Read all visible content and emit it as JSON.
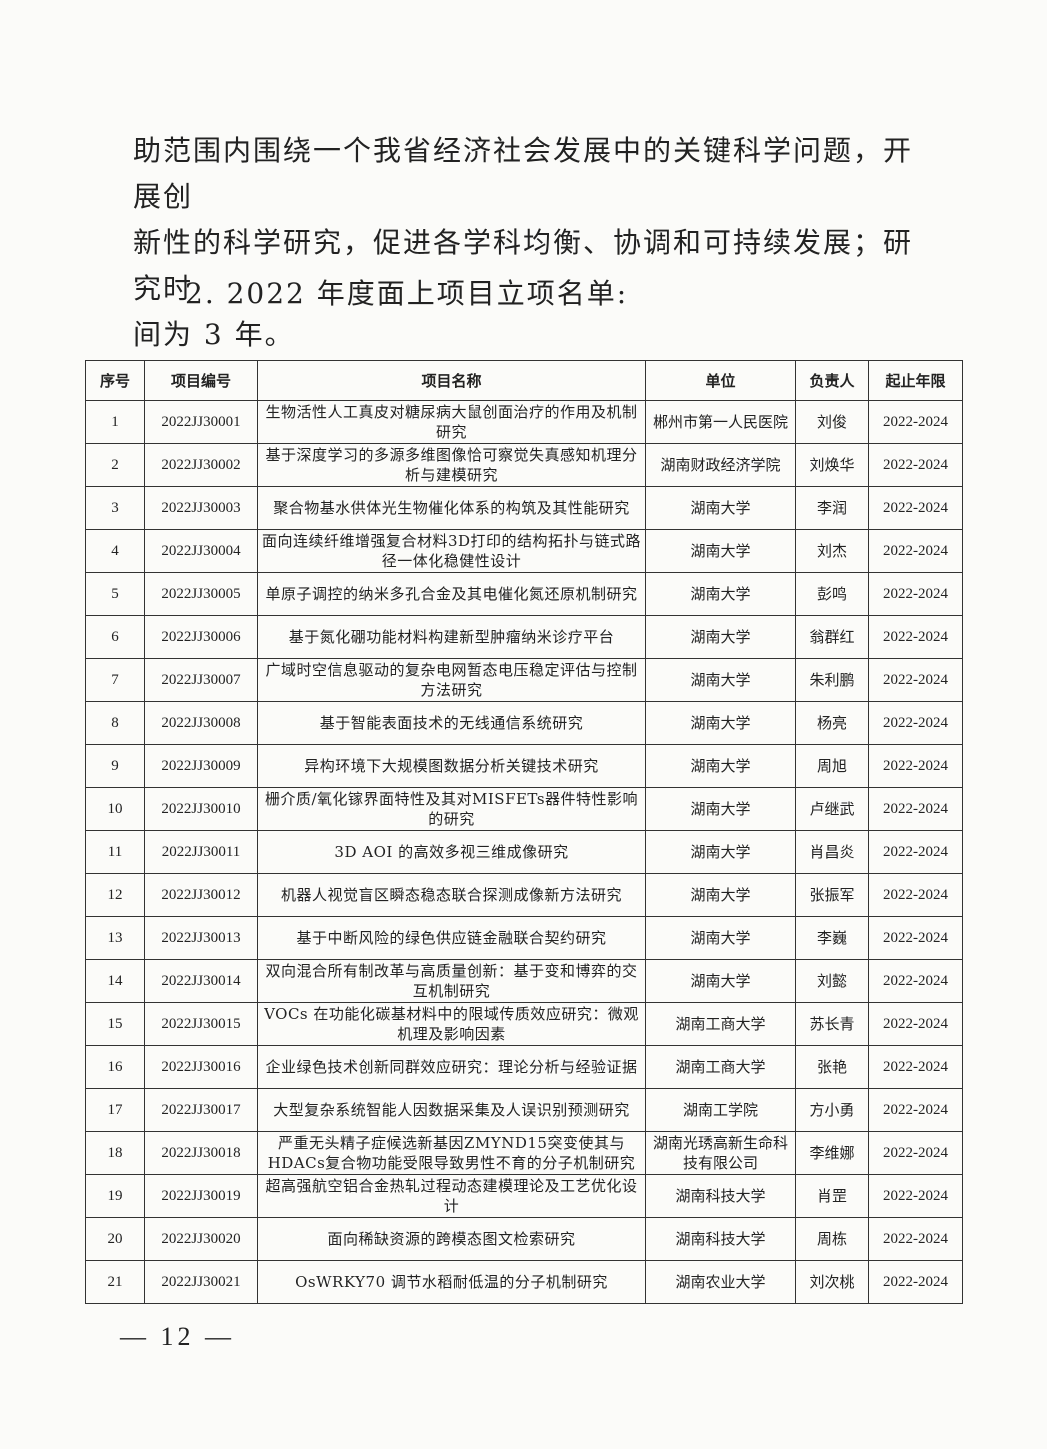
{
  "intro_lines": [
    "助范围内围绕一个我省经济社会发展中的关键科学问题，开展创",
    "新性的科学研究，促进各学科均衡、协调和可持续发展；研究时",
    "间为 3 年。"
  ],
  "section_title": "2. 2022 年度面上项目立项名单:",
  "table": {
    "headers": [
      "序号",
      "项目编号",
      "项目名称",
      "单位",
      "负责人",
      "起止年限"
    ],
    "rows": [
      [
        "1",
        "2022JJ30001",
        "生物活性人工真皮对糖尿病大鼠创面治疗的作用及机制研究",
        "郴州市第一人民医院",
        "刘俊",
        "2022-2024"
      ],
      [
        "2",
        "2022JJ30002",
        "基于深度学习的多源多维图像恰可察觉失真感知机理分析与建模研究",
        "湖南财政经济学院",
        "刘焕华",
        "2022-2024"
      ],
      [
        "3",
        "2022JJ30003",
        "聚合物基水供体光生物催化体系的构筑及其性能研究",
        "湖南大学",
        "李润",
        "2022-2024"
      ],
      [
        "4",
        "2022JJ30004",
        "面向连续纤维增强复合材料3D打印的结构拓扑与链式路径一体化稳健性设计",
        "湖南大学",
        "刘杰",
        "2022-2024"
      ],
      [
        "5",
        "2022JJ30005",
        "单原子调控的纳米多孔合金及其电催化氮还原机制研究",
        "湖南大学",
        "彭鸣",
        "2022-2024"
      ],
      [
        "6",
        "2022JJ30006",
        "基于氮化硼功能材料构建新型肿瘤纳米诊疗平台",
        "湖南大学",
        "翁群红",
        "2022-2024"
      ],
      [
        "7",
        "2022JJ30007",
        "广域时空信息驱动的复杂电网暂态电压稳定评估与控制方法研究",
        "湖南大学",
        "朱利鹏",
        "2022-2024"
      ],
      [
        "8",
        "2022JJ30008",
        "基于智能表面技术的无线通信系统研究",
        "湖南大学",
        "杨亮",
        "2022-2024"
      ],
      [
        "9",
        "2022JJ30009",
        "异构环境下大规模图数据分析关键技术研究",
        "湖南大学",
        "周旭",
        "2022-2024"
      ],
      [
        "10",
        "2022JJ30010",
        "栅介质/氧化镓界面特性及其对MISFETs器件特性影响的研究",
        "湖南大学",
        "卢继武",
        "2022-2024"
      ],
      [
        "11",
        "2022JJ30011",
        "3D AOI 的高效多视三维成像研究",
        "湖南大学",
        "肖昌炎",
        "2022-2024"
      ],
      [
        "12",
        "2022JJ30012",
        "机器人视觉盲区瞬态稳态联合探测成像新方法研究",
        "湖南大学",
        "张振军",
        "2022-2024"
      ],
      [
        "13",
        "2022JJ30013",
        "基于中断风险的绿色供应链金融联合契约研究",
        "湖南大学",
        "李巍",
        "2022-2024"
      ],
      [
        "14",
        "2022JJ30014",
        "双向混合所有制改革与高质量创新：基于变和博弈的交互机制研究",
        "湖南大学",
        "刘懿",
        "2022-2024"
      ],
      [
        "15",
        "2022JJ30015",
        "VOCs 在功能化碳基材料中的限域传质效应研究：微观机理及影响因素",
        "湖南工商大学",
        "苏长青",
        "2022-2024"
      ],
      [
        "16",
        "2022JJ30016",
        "企业绿色技术创新同群效应研究：理论分析与经验证据",
        "湖南工商大学",
        "张艳",
        "2022-2024"
      ],
      [
        "17",
        "2022JJ30017",
        "大型复杂系统智能人因数据采集及人误识别预测研究",
        "湖南工学院",
        "方小勇",
        "2022-2024"
      ],
      [
        "18",
        "2022JJ30018",
        "严重无头精子症候选新基因ZMYND15突变使其与HDACs复合物功能受限导致男性不育的分子机制研究",
        "湖南光琇高新生命科技有限公司",
        "李维娜",
        "2022-2024"
      ],
      [
        "19",
        "2022JJ30019",
        "超高强航空铝合金热轧过程动态建模理论及工艺优化设计",
        "湖南科技大学",
        "肖罡",
        "2022-2024"
      ],
      [
        "20",
        "2022JJ30020",
        "面向稀缺资源的跨模态图文检索研究",
        "湖南科技大学",
        "周栋",
        "2022-2024"
      ],
      [
        "21",
        "2022JJ30021",
        "OsWRKY70 调节水稻耐低温的分子机制研究",
        "湖南农业大学",
        "刘次桃",
        "2022-2024"
      ]
    ]
  },
  "page_number": "— 12 —"
}
